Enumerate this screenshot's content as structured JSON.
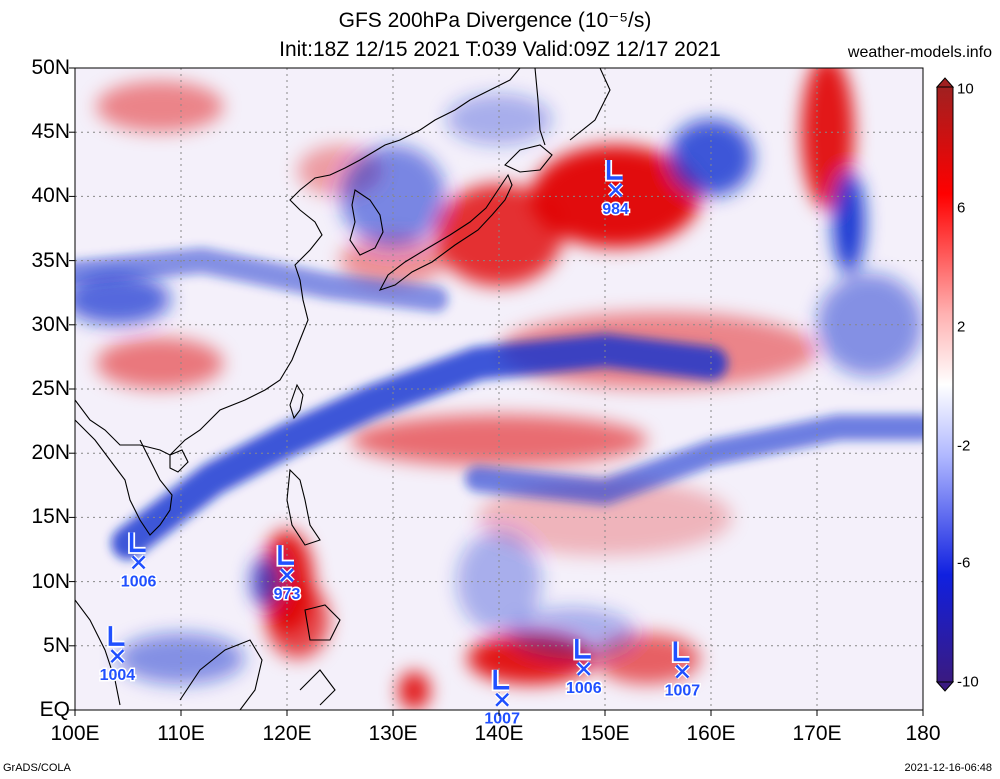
{
  "title_line1": "GFS 200hPa Divergence (10⁻⁵/s)",
  "title_line2": "Init:18Z 12/15 2021 T:039 Valid:09Z 12/17 2021",
  "site": "weather-models.info",
  "footer_left": "GrADS/COLA",
  "footer_right": "2021-12-16-06:48",
  "lat_labels": [
    "50N",
    "45N",
    "40N",
    "35N",
    "30N",
    "25N",
    "20N",
    "15N",
    "10N",
    "5N",
    "EQ"
  ],
  "lon_labels": [
    "100E",
    "110E",
    "120E",
    "130E",
    "140E",
    "150E",
    "160E",
    "170E",
    "180"
  ],
  "colorbar_labels": [
    "10",
    "6",
    "2",
    "-2",
    "-6",
    "-10"
  ],
  "colors": {
    "pos": "#e00000",
    "neg": "#1030d0",
    "low_marker": "#2050ff"
  },
  "map_data": {
    "lon_range": [
      100,
      180
    ],
    "lat_range": [
      0,
      50
    ],
    "lows": [
      {
        "lat": 40.5,
        "lon": 151,
        "pressure": "984"
      },
      {
        "lat": 11.5,
        "lon": 106,
        "pressure": "1006"
      },
      {
        "lat": 10.5,
        "lon": 120,
        "pressure": "973"
      },
      {
        "lat": 4.2,
        "lon": 104,
        "pressure": "1004"
      },
      {
        "lat": 0.8,
        "lon": 140.3,
        "pressure": "1007"
      },
      {
        "lat": 3.2,
        "lon": 148,
        "pressure": "1006"
      },
      {
        "lat": 3.0,
        "lon": 157.3,
        "pressure": "1007"
      }
    ],
    "positive_areas": [
      {
        "lat": 40,
        "lon": 151,
        "rx": 8,
        "ry": 4,
        "s": 0.95
      },
      {
        "lat": 37,
        "lon": 140,
        "rx": 6,
        "ry": 4,
        "s": 0.8
      },
      {
        "lat": 45,
        "lon": 171,
        "rx": 2.5,
        "ry": 6,
        "s": 0.9
      },
      {
        "lat": 10,
        "lon": 120,
        "rx": 2.5,
        "ry": 4,
        "s": 0.9
      },
      {
        "lat": 7,
        "lon": 121,
        "rx": 3,
        "ry": 3,
        "s": 0.7
      },
      {
        "lat": 4,
        "lon": 143,
        "rx": 6,
        "ry": 2,
        "s": 0.9
      },
      {
        "lat": 4,
        "lon": 154,
        "rx": 5,
        "ry": 2,
        "s": 0.6
      },
      {
        "lat": 1.5,
        "lon": 132,
        "rx": 1.5,
        "ry": 1.5,
        "s": 0.9
      },
      {
        "lat": 28,
        "lon": 155,
        "rx": 15,
        "ry": 3,
        "s": 0.45
      },
      {
        "lat": 21,
        "lon": 140,
        "rx": 14,
        "ry": 2,
        "s": 0.55
      },
      {
        "lat": 27,
        "lon": 108,
        "rx": 6,
        "ry": 2,
        "s": 0.5
      },
      {
        "lat": 47,
        "lon": 108,
        "rx": 6,
        "ry": 2,
        "s": 0.45
      },
      {
        "lat": 42,
        "lon": 125,
        "rx": 4,
        "ry": 2,
        "s": 0.35
      },
      {
        "lat": 35,
        "lon": 130,
        "rx": 5,
        "ry": 2,
        "s": 0.4
      },
      {
        "lat": 15,
        "lon": 150,
        "rx": 12,
        "ry": 3,
        "s": 0.25
      }
    ],
    "negative_areas": [
      {
        "lat": 32,
        "lon": 104,
        "rx": 5,
        "ry": 2,
        "s": 0.7
      },
      {
        "lat": 40,
        "lon": 130,
        "rx": 5,
        "ry": 4,
        "s": 0.55
      },
      {
        "lat": 43,
        "lon": 160,
        "rx": 4,
        "ry": 3,
        "s": 0.8
      },
      {
        "lat": 38,
        "lon": 173,
        "rx": 1.5,
        "ry": 4,
        "s": 0.95
      },
      {
        "lat": 10,
        "lon": 118,
        "rx": 1.5,
        "ry": 2,
        "s": 0.7
      },
      {
        "lat": 4,
        "lon": 110,
        "rx": 6,
        "ry": 2,
        "s": 0.5
      },
      {
        "lat": 6,
        "lon": 147,
        "rx": 6,
        "ry": 2,
        "s": 0.35
      },
      {
        "lat": 10,
        "lon": 140,
        "rx": 4,
        "ry": 4,
        "s": 0.35
      },
      {
        "lat": 30,
        "lon": 175,
        "rx": 5,
        "ry": 4,
        "s": 0.5
      },
      {
        "lat": 46,
        "lon": 140,
        "rx": 5,
        "ry": 2,
        "s": 0.35
      }
    ],
    "negative_bands": [
      {
        "pts": [
          [
            105,
            13
          ],
          [
            113,
            18
          ],
          [
            120,
            21
          ],
          [
            128,
            24
          ],
          [
            138,
            27
          ],
          [
            150,
            28
          ],
          [
            160,
            27
          ]
        ],
        "w": 2.6,
        "s": 0.8
      },
      {
        "pts": [
          [
            138,
            18
          ],
          [
            150,
            17
          ],
          [
            160,
            20
          ],
          [
            172,
            22
          ],
          [
            180,
            22
          ]
        ],
        "w": 2.0,
        "s": 0.6
      },
      {
        "pts": [
          [
            100,
            34
          ],
          [
            112,
            35
          ],
          [
            124,
            33
          ],
          [
            134,
            32
          ]
        ],
        "w": 2.0,
        "s": 0.5
      }
    ]
  }
}
